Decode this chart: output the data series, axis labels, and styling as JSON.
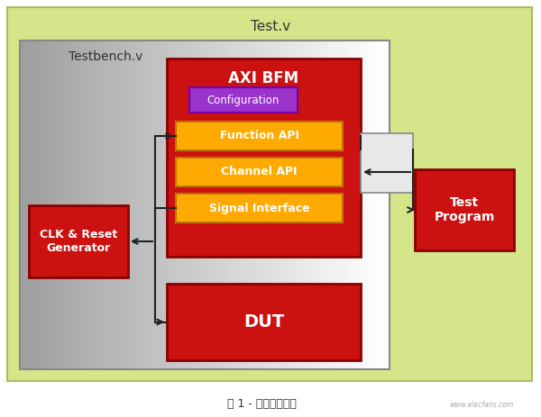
{
  "fig_bg": "#ffffff",
  "outer_bg": "#d4e58a",
  "testv_label": "Test.v",
  "testbench_label": "Testbench.v",
  "axibfm_label": "AXI BFM",
  "config_label": "Configuration",
  "func_api_label": "Function API",
  "chan_api_label": "Channel API",
  "sig_iface_label": "Signal Interface",
  "clk_label": "CLK & Reset\nGenerator",
  "dut_label": "DUT",
  "test_prog_label": "Test\nProgram",
  "caption": "图 1 - 测试系统结构",
  "red_color": "#cc1111",
  "orange_color": "#ffaa00",
  "purple_color": "#9933cc",
  "arrow_color": "#222222"
}
